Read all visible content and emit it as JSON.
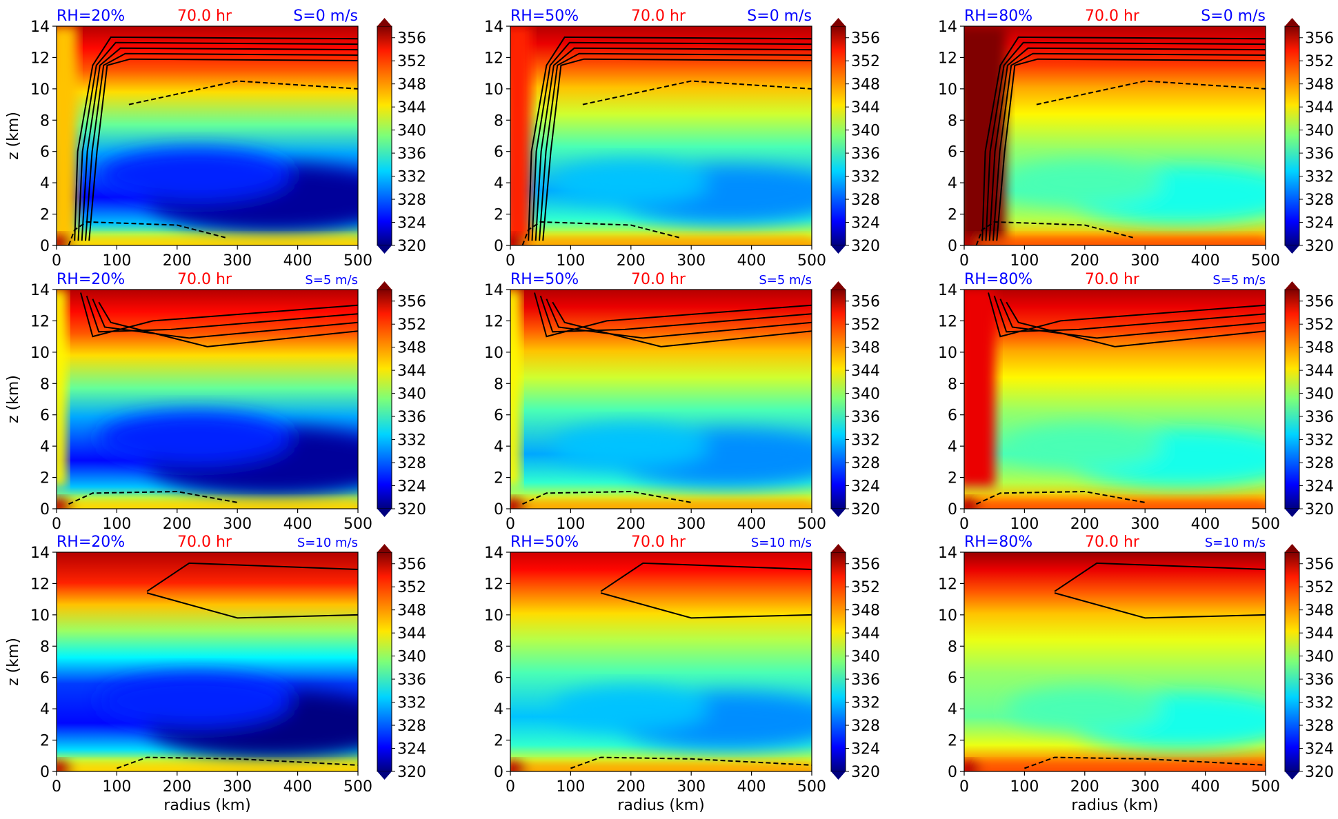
{
  "figure": {
    "xlabel": "radius (km)",
    "ylabel": "z (km)",
    "time_label": "70.0 hr",
    "colors": {
      "meta_blue": "#0000ff",
      "time_red": "#ff0000",
      "contour": "#000000"
    }
  },
  "colorbar": {
    "ticks": [
      "356",
      "352",
      "348",
      "344",
      "340",
      "336",
      "332",
      "328",
      "324",
      "320"
    ],
    "range": [
      320,
      358
    ],
    "colormap": "jet",
    "extend": "both"
  },
  "panels": [
    {
      "rh": "RH=20%",
      "shear": "S=0 m/s"
    },
    {
      "rh": "RH=50%",
      "shear": "S=0 m/s"
    },
    {
      "rh": "RH=80%",
      "shear": "S=0 m/s"
    },
    {
      "rh": "RH=20%",
      "shear": "S=5 m/s"
    },
    {
      "rh": "RH=50%",
      "shear": "S=5 m/s"
    },
    {
      "rh": "RH=80%",
      "shear": "S=5 m/s"
    },
    {
      "rh": "RH=20%",
      "shear": "S=10 m/s"
    },
    {
      "rh": "RH=50%",
      "shear": "S=10 m/s"
    },
    {
      "rh": "RH=80%",
      "shear": "S=10 m/s"
    }
  ],
  "chart_data": [
    {
      "type": "heatmap",
      "x_range": [
        0,
        500
      ],
      "y_range": [
        0,
        14
      ],
      "xticks": [
        "0",
        "100",
        "200",
        "300",
        "400",
        "500"
      ],
      "yticks": [
        "0",
        "2",
        "4",
        "6",
        "8",
        "10",
        "12",
        "14"
      ],
      "rh": 20,
      "shear": 0,
      "value_range": [
        320,
        358
      ]
    },
    {
      "type": "heatmap",
      "x_range": [
        0,
        500
      ],
      "y_range": [
        0,
        14
      ],
      "xticks": [
        "0",
        "100",
        "200",
        "300",
        "400",
        "500"
      ],
      "yticks": [
        "0",
        "2",
        "4",
        "6",
        "8",
        "10",
        "12",
        "14"
      ],
      "rh": 50,
      "shear": 0,
      "value_range": [
        320,
        358
      ]
    },
    {
      "type": "heatmap",
      "x_range": [
        0,
        500
      ],
      "y_range": [
        0,
        14
      ],
      "xticks": [
        "0",
        "100",
        "200",
        "300",
        "400",
        "500"
      ],
      "yticks": [
        "0",
        "2",
        "4",
        "6",
        "8",
        "10",
        "12",
        "14"
      ],
      "rh": 80,
      "shear": 0,
      "value_range": [
        320,
        358
      ]
    },
    {
      "type": "heatmap",
      "x_range": [
        0,
        500
      ],
      "y_range": [
        0,
        14
      ],
      "xticks": [
        "0",
        "100",
        "200",
        "300",
        "400",
        "500"
      ],
      "yticks": [
        "0",
        "2",
        "4",
        "6",
        "8",
        "10",
        "12",
        "14"
      ],
      "rh": 20,
      "shear": 5,
      "value_range": [
        320,
        358
      ]
    },
    {
      "type": "heatmap",
      "x_range": [
        0,
        500
      ],
      "y_range": [
        0,
        14
      ],
      "xticks": [
        "0",
        "100",
        "200",
        "300",
        "400",
        "500"
      ],
      "yticks": [
        "0",
        "2",
        "4",
        "6",
        "8",
        "10",
        "12",
        "14"
      ],
      "rh": 50,
      "shear": 5,
      "value_range": [
        320,
        358
      ]
    },
    {
      "type": "heatmap",
      "x_range": [
        0,
        500
      ],
      "y_range": [
        0,
        14
      ],
      "xticks": [
        "0",
        "100",
        "200",
        "300",
        "400",
        "500"
      ],
      "yticks": [
        "0",
        "2",
        "4",
        "6",
        "8",
        "10",
        "12",
        "14"
      ],
      "rh": 80,
      "shear": 5,
      "value_range": [
        320,
        358
      ]
    },
    {
      "type": "heatmap",
      "x_range": [
        0,
        500
      ],
      "y_range": [
        0,
        14
      ],
      "xticks": [
        "0",
        "100",
        "200",
        "300",
        "400",
        "500"
      ],
      "yticks": [
        "0",
        "2",
        "4",
        "6",
        "8",
        "10",
        "12",
        "14"
      ],
      "rh": 20,
      "shear": 10,
      "value_range": [
        320,
        358
      ]
    },
    {
      "type": "heatmap",
      "x_range": [
        0,
        500
      ],
      "y_range": [
        0,
        14
      ],
      "xticks": [
        "0",
        "100",
        "200",
        "300",
        "400",
        "500"
      ],
      "yticks": [
        "0",
        "2",
        "4",
        "6",
        "8",
        "10",
        "12",
        "14"
      ],
      "rh": 50,
      "shear": 10,
      "value_range": [
        320,
        358
      ]
    },
    {
      "type": "heatmap",
      "x_range": [
        0,
        500
      ],
      "y_range": [
        0,
        14
      ],
      "xticks": [
        "0",
        "100",
        "200",
        "300",
        "400",
        "500"
      ],
      "yticks": [
        "0",
        "2",
        "4",
        "6",
        "8",
        "10",
        "12",
        "14"
      ],
      "rh": 80,
      "shear": 10,
      "value_range": [
        320,
        358
      ]
    }
  ]
}
